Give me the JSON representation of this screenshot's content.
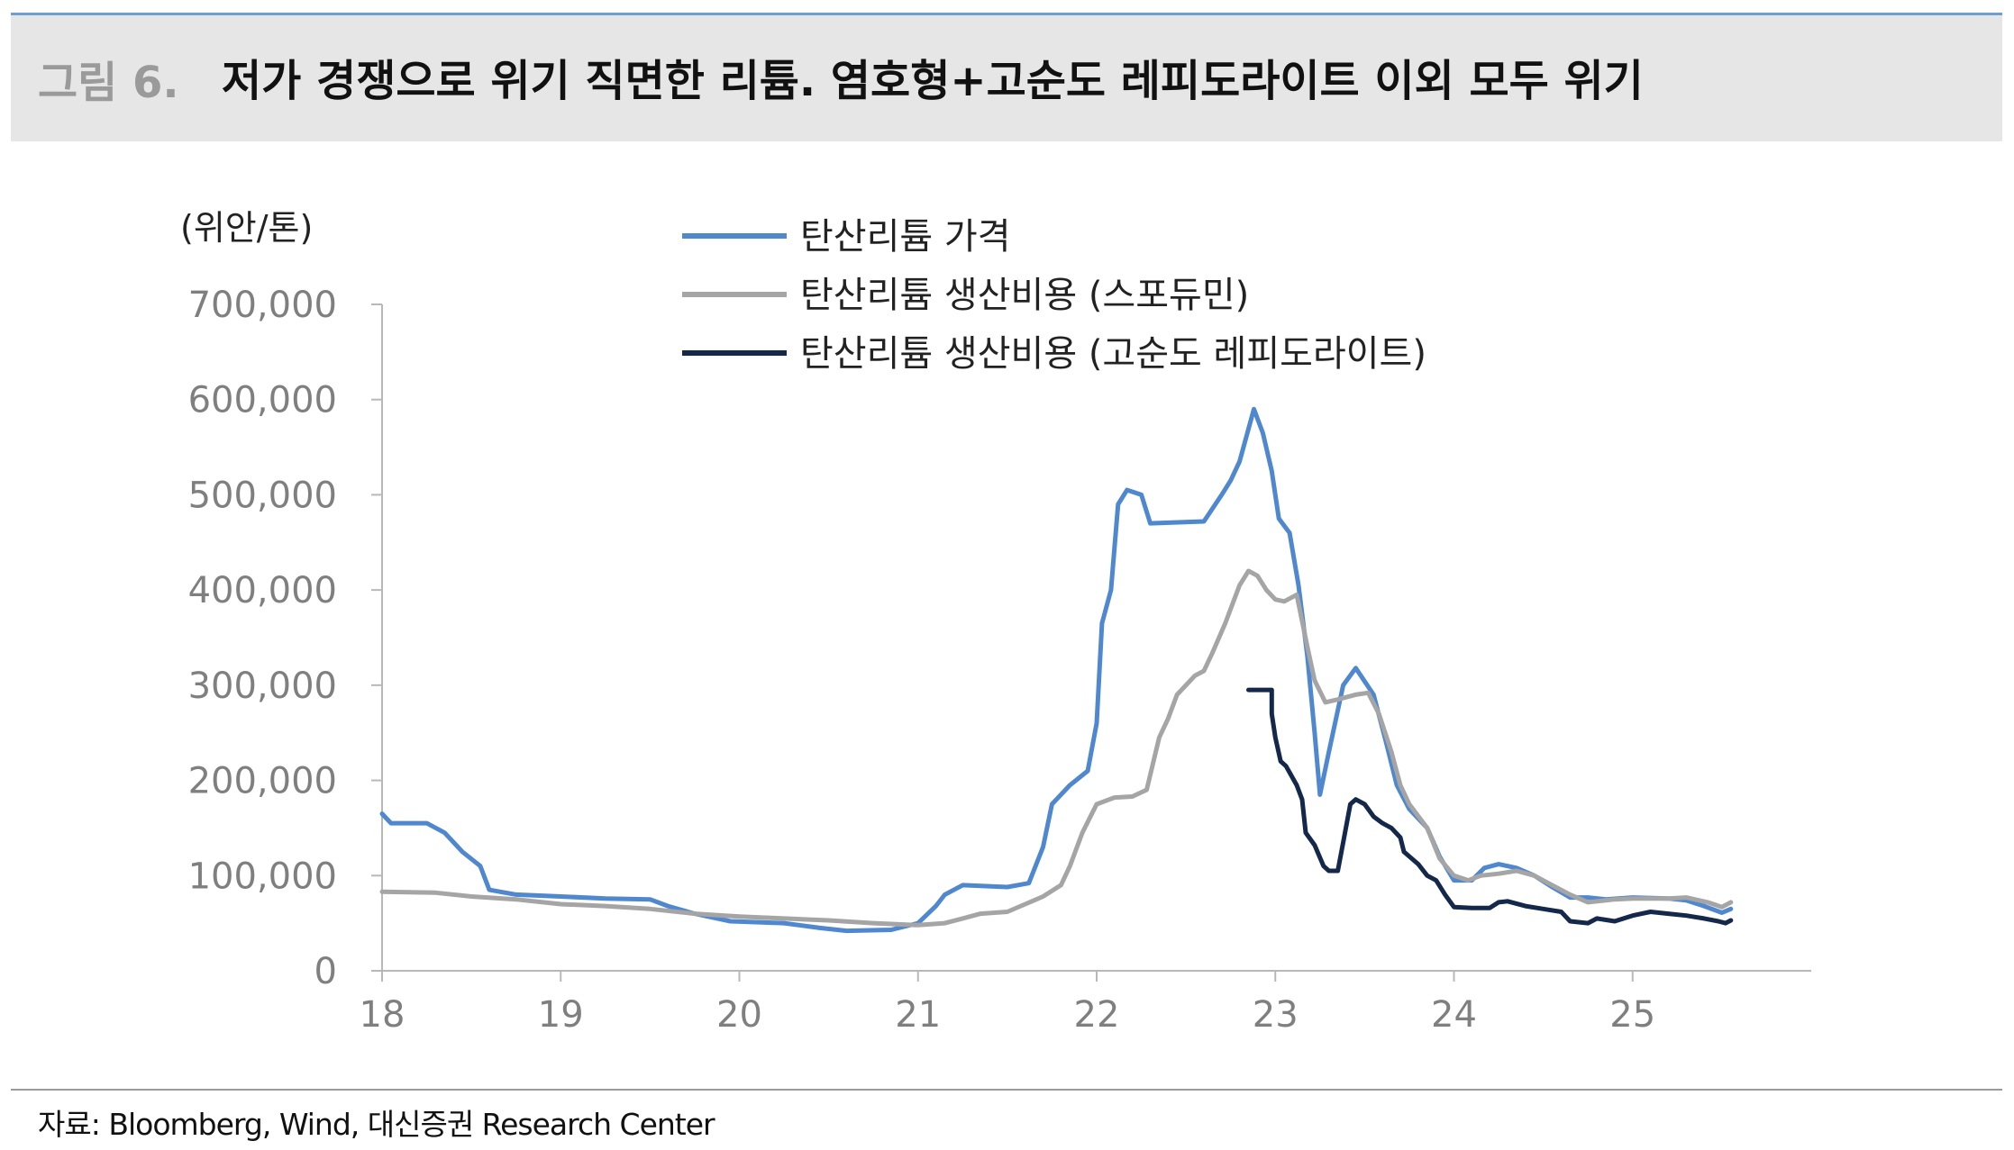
{
  "figure": {
    "label": "그림 6.",
    "title": "저가 경쟁으로 위기 직면한 리튬. 염호형+고순도 레피도라이트 이외 모두 위기"
  },
  "source": "자료: Bloomberg, Wind, 대신증권 Research Center",
  "colors": {
    "price": "#4f88cf",
    "spodumene": "#a5a5a5",
    "lepidolite": "#13284a"
  },
  "chart_data": {
    "type": "line",
    "unit_label": "(위안/톤)",
    "ylim": [
      0,
      700000
    ],
    "yticks": [
      0,
      100000,
      200000,
      300000,
      400000,
      500000,
      600000,
      700000
    ],
    "ytick_labels": [
      "0",
      "100,000",
      "200,000",
      "300,000",
      "400,000",
      "500,000",
      "600,000",
      "700,000"
    ],
    "xlim": [
      18,
      26
    ],
    "xticks": [
      18,
      19,
      20,
      21,
      22,
      23,
      24,
      25
    ],
    "xtick_labels": [
      "18",
      "19",
      "20",
      "21",
      "22",
      "23",
      "24",
      "25"
    ],
    "legend_position": "top-center",
    "series": [
      {
        "name": "탄산리튬 가격",
        "points": [
          [
            18.0,
            165000
          ],
          [
            18.05,
            155000
          ],
          [
            18.25,
            155000
          ],
          [
            18.35,
            145000
          ],
          [
            18.45,
            125000
          ],
          [
            18.55,
            110000
          ],
          [
            18.6,
            85000
          ],
          [
            18.75,
            80000
          ],
          [
            19.0,
            78000
          ],
          [
            19.25,
            76000
          ],
          [
            19.5,
            75000
          ],
          [
            19.6,
            68000
          ],
          [
            19.75,
            60000
          ],
          [
            19.95,
            52000
          ],
          [
            20.25,
            50000
          ],
          [
            20.45,
            45000
          ],
          [
            20.6,
            42000
          ],
          [
            20.85,
            43000
          ],
          [
            21.0,
            50000
          ],
          [
            21.1,
            68000
          ],
          [
            21.15,
            80000
          ],
          [
            21.25,
            90000
          ],
          [
            21.5,
            88000
          ],
          [
            21.62,
            92000
          ],
          [
            21.7,
            130000
          ],
          [
            21.75,
            175000
          ],
          [
            21.85,
            195000
          ],
          [
            21.95,
            210000
          ],
          [
            22.0,
            260000
          ],
          [
            22.03,
            365000
          ],
          [
            22.08,
            400000
          ],
          [
            22.12,
            490000
          ],
          [
            22.17,
            505000
          ],
          [
            22.25,
            500000
          ],
          [
            22.3,
            470000
          ],
          [
            22.6,
            472000
          ],
          [
            22.7,
            500000
          ],
          [
            22.75,
            515000
          ],
          [
            22.8,
            535000
          ],
          [
            22.88,
            590000
          ],
          [
            22.93,
            565000
          ],
          [
            22.98,
            525000
          ],
          [
            23.02,
            475000
          ],
          [
            23.08,
            460000
          ],
          [
            23.13,
            405000
          ],
          [
            23.18,
            330000
          ],
          [
            23.22,
            250000
          ],
          [
            23.25,
            185000
          ],
          [
            23.3,
            230000
          ],
          [
            23.38,
            300000
          ],
          [
            23.45,
            318000
          ],
          [
            23.55,
            290000
          ],
          [
            23.62,
            240000
          ],
          [
            23.68,
            195000
          ],
          [
            23.75,
            170000
          ],
          [
            23.85,
            150000
          ],
          [
            23.92,
            120000
          ],
          [
            24.0,
            95000
          ],
          [
            24.1,
            95000
          ],
          [
            24.17,
            108000
          ],
          [
            24.25,
            112000
          ],
          [
            24.35,
            108000
          ],
          [
            24.45,
            100000
          ],
          [
            24.55,
            88000
          ],
          [
            24.65,
            77000
          ],
          [
            24.75,
            77000
          ],
          [
            24.85,
            75000
          ],
          [
            25.0,
            77000
          ],
          [
            25.2,
            76000
          ],
          [
            25.3,
            74000
          ],
          [
            25.4,
            68000
          ],
          [
            25.5,
            61000
          ],
          [
            25.55,
            65000
          ]
        ]
      },
      {
        "name": "탄산리튬 생산비용 (스포듀민)",
        "points": [
          [
            18.0,
            83000
          ],
          [
            18.3,
            82000
          ],
          [
            18.5,
            78000
          ],
          [
            18.75,
            75000
          ],
          [
            19.0,
            70000
          ],
          [
            19.25,
            68000
          ],
          [
            19.5,
            65000
          ],
          [
            19.75,
            60000
          ],
          [
            20.0,
            57000
          ],
          [
            20.25,
            55000
          ],
          [
            20.5,
            53000
          ],
          [
            20.75,
            50000
          ],
          [
            21.0,
            48000
          ],
          [
            21.15,
            50000
          ],
          [
            21.25,
            55000
          ],
          [
            21.35,
            60000
          ],
          [
            21.5,
            62000
          ],
          [
            21.6,
            70000
          ],
          [
            21.7,
            78000
          ],
          [
            21.8,
            90000
          ],
          [
            21.85,
            110000
          ],
          [
            21.92,
            145000
          ],
          [
            22.0,
            175000
          ],
          [
            22.1,
            182000
          ],
          [
            22.2,
            183000
          ],
          [
            22.28,
            190000
          ],
          [
            22.35,
            245000
          ],
          [
            22.4,
            265000
          ],
          [
            22.45,
            290000
          ],
          [
            22.5,
            300000
          ],
          [
            22.55,
            310000
          ],
          [
            22.6,
            315000
          ],
          [
            22.65,
            335000
          ],
          [
            22.72,
            365000
          ],
          [
            22.8,
            405000
          ],
          [
            22.85,
            420000
          ],
          [
            22.9,
            415000
          ],
          [
            22.95,
            400000
          ],
          [
            23.0,
            390000
          ],
          [
            23.05,
            388000
          ],
          [
            23.12,
            395000
          ],
          [
            23.18,
            340000
          ],
          [
            23.22,
            305000
          ],
          [
            23.28,
            282000
          ],
          [
            23.35,
            285000
          ],
          [
            23.45,
            290000
          ],
          [
            23.52,
            292000
          ],
          [
            23.58,
            270000
          ],
          [
            23.65,
            230000
          ],
          [
            23.7,
            195000
          ],
          [
            23.75,
            175000
          ],
          [
            23.85,
            150000
          ],
          [
            23.92,
            118000
          ],
          [
            24.0,
            100000
          ],
          [
            24.08,
            95000
          ],
          [
            24.15,
            100000
          ],
          [
            24.25,
            102000
          ],
          [
            24.35,
            105000
          ],
          [
            24.45,
            100000
          ],
          [
            24.55,
            90000
          ],
          [
            24.65,
            80000
          ],
          [
            24.75,
            72000
          ],
          [
            24.9,
            75000
          ],
          [
            25.0,
            76000
          ],
          [
            25.2,
            76000
          ],
          [
            25.3,
            77000
          ],
          [
            25.42,
            72000
          ],
          [
            25.5,
            67000
          ],
          [
            25.55,
            72000
          ]
        ]
      },
      {
        "name": "탄산리튬 생산비용 (고순도 레피도라이트)",
        "points": [
          [
            22.85,
            295000
          ],
          [
            22.98,
            295000
          ],
          [
            22.98,
            270000
          ],
          [
            23.0,
            245000
          ],
          [
            23.03,
            220000
          ],
          [
            23.06,
            215000
          ],
          [
            23.12,
            195000
          ],
          [
            23.15,
            180000
          ],
          [
            23.17,
            145000
          ],
          [
            23.22,
            132000
          ],
          [
            23.27,
            110000
          ],
          [
            23.3,
            105000
          ],
          [
            23.35,
            105000
          ],
          [
            23.38,
            135000
          ],
          [
            23.42,
            175000
          ],
          [
            23.45,
            180000
          ],
          [
            23.5,
            175000
          ],
          [
            23.55,
            162000
          ],
          [
            23.6,
            155000
          ],
          [
            23.65,
            150000
          ],
          [
            23.7,
            140000
          ],
          [
            23.72,
            125000
          ],
          [
            23.8,
            112000
          ],
          [
            23.85,
            100000
          ],
          [
            23.9,
            95000
          ],
          [
            23.95,
            80000
          ],
          [
            24.0,
            67000
          ],
          [
            24.1,
            66000
          ],
          [
            24.2,
            66000
          ],
          [
            24.25,
            72000
          ],
          [
            24.3,
            73000
          ],
          [
            24.4,
            68000
          ],
          [
            24.5,
            65000
          ],
          [
            24.6,
            62000
          ],
          [
            24.65,
            52000
          ],
          [
            24.75,
            50000
          ],
          [
            24.8,
            55000
          ],
          [
            24.9,
            52000
          ],
          [
            25.0,
            58000
          ],
          [
            25.1,
            62000
          ],
          [
            25.2,
            60000
          ],
          [
            25.3,
            58000
          ],
          [
            25.4,
            55000
          ],
          [
            25.48,
            52000
          ],
          [
            25.52,
            50000
          ],
          [
            25.55,
            53000
          ]
        ]
      }
    ]
  }
}
